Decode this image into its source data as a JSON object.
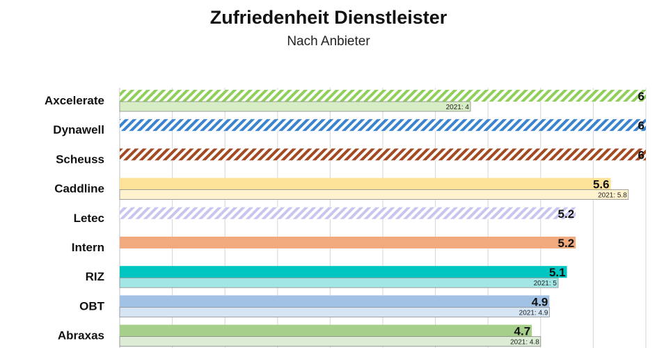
{
  "chart_data": {
    "type": "bar",
    "orientation": "horizontal",
    "title": "Zufriedenheit Dienstleister",
    "subtitle": "Nach Anbieter",
    "xlim": [
      0,
      6
    ],
    "grid": true,
    "categories": [
      "Axcelerate",
      "Dynawell",
      "Scheuss",
      "Caddline",
      "Letec",
      "Intern",
      "RIZ",
      "OBT",
      "Abraxas"
    ],
    "series": [
      {
        "values": [
          6,
          6,
          6,
          5.6,
          5.2,
          5.2,
          5.1,
          4.9,
          4.7
        ],
        "labels": [
          "6",
          "6",
          "6",
          "5.6",
          "5.2",
          "5.2",
          "5.1",
          "4.9",
          "4.7"
        ]
      },
      {
        "values": [
          4,
          null,
          null,
          5.8,
          null,
          null,
          5,
          4.9,
          4.8
        ],
        "labels": [
          "2021: 4",
          "",
          "",
          "2021: 5.8",
          "",
          "",
          "2021: 5",
          "2021: 4.9",
          "2021: 4.8"
        ]
      }
    ],
    "colors": [
      "#8fcf5a",
      "#3a84cf",
      "#a34a22",
      "#fde39a",
      "#c8c6ef",
      "#f0aa7e",
      "#00c6c2",
      "#a2c2e5",
      "#a6cf8c"
    ],
    "prev_colors": [
      "#d7edc6",
      "",
      "",
      "#fff3cf",
      "",
      "",
      "#a3e6e6",
      "#d5e5f4",
      "#ddecd4"
    ],
    "hatched": [
      true,
      true,
      true,
      false,
      true,
      false,
      false,
      false,
      false
    ]
  }
}
